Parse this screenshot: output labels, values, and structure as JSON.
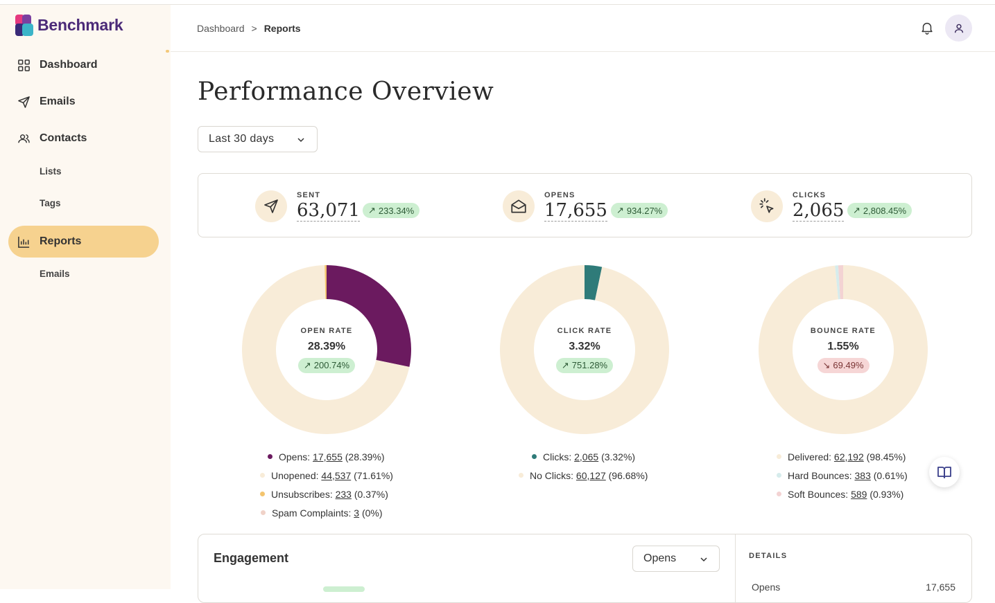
{
  "app": {
    "brand": "Benchmark"
  },
  "sidebar": {
    "items": [
      {
        "label": "Dashboard",
        "icon": "grid-icon"
      },
      {
        "label": "Emails",
        "icon": "send-icon"
      },
      {
        "label": "Contacts",
        "icon": "contacts-icon"
      },
      {
        "label": "Lists"
      },
      {
        "label": "Tags"
      },
      {
        "label": "Reports",
        "icon": "bar-chart-icon",
        "active": true
      },
      {
        "label": "Emails"
      }
    ]
  },
  "header": {
    "breadcrumb": [
      "Dashboard",
      "Reports"
    ],
    "separator": ">"
  },
  "page": {
    "title": "Performance Overview",
    "range": "Last 30 days"
  },
  "stats": [
    {
      "label": "SENT",
      "value": "63,071",
      "change": "233.34%",
      "icon": "send-icon"
    },
    {
      "label": "OPENS",
      "value": "17,655",
      "change": "934.27%",
      "icon": "envelope-open-icon"
    },
    {
      "label": "CLICKS",
      "value": "2,065",
      "change": "2,808.45%",
      "icon": "click-icon"
    }
  ],
  "donuts": [
    {
      "label": "OPEN RATE",
      "value": "28.39%",
      "change": "200.74%",
      "trend": "up",
      "legend": [
        {
          "name": "Opens",
          "count": "17,655",
          "pct": "(28.39%)",
          "color": "#6b1a5f"
        },
        {
          "name": "Unopened",
          "count": "44,537",
          "pct": "(71.61%)",
          "color": "#f8ecd8"
        },
        {
          "name": "Unsubscribes",
          "count": "233",
          "pct": "(0.37%)",
          "color": "#f3c46e"
        },
        {
          "name": "Spam Complaints",
          "count": "3",
          "pct": "(0%)",
          "color": "#f0d2c8"
        }
      ]
    },
    {
      "label": "CLICK RATE",
      "value": "3.32%",
      "change": "751.28%",
      "trend": "up",
      "legend": [
        {
          "name": "Clicks",
          "count": "2,065",
          "pct": "(3.32%)",
          "color": "#2f7b79"
        },
        {
          "name": "No Clicks",
          "count": "60,127",
          "pct": "(96.68%)",
          "color": "#f8ecd8"
        }
      ]
    },
    {
      "label": "BOUNCE RATE",
      "value": "1.55%",
      "change": "69.49%",
      "trend": "down",
      "legend": [
        {
          "name": "Delivered",
          "count": "62,192",
          "pct": "(98.45%)",
          "color": "#f8ecd8"
        },
        {
          "name": "Hard Bounces",
          "count": "383",
          "pct": "(0.61%)",
          "color": "#d6ecec"
        },
        {
          "name": "Soft Bounces",
          "count": "589",
          "pct": "(0.93%)",
          "color": "#f3d3d3"
        }
      ]
    }
  ],
  "engagement": {
    "title": "Engagement",
    "select": "Opens",
    "details_label": "DETAILS",
    "row": {
      "name": "Opens",
      "value": "17,655"
    }
  }
}
